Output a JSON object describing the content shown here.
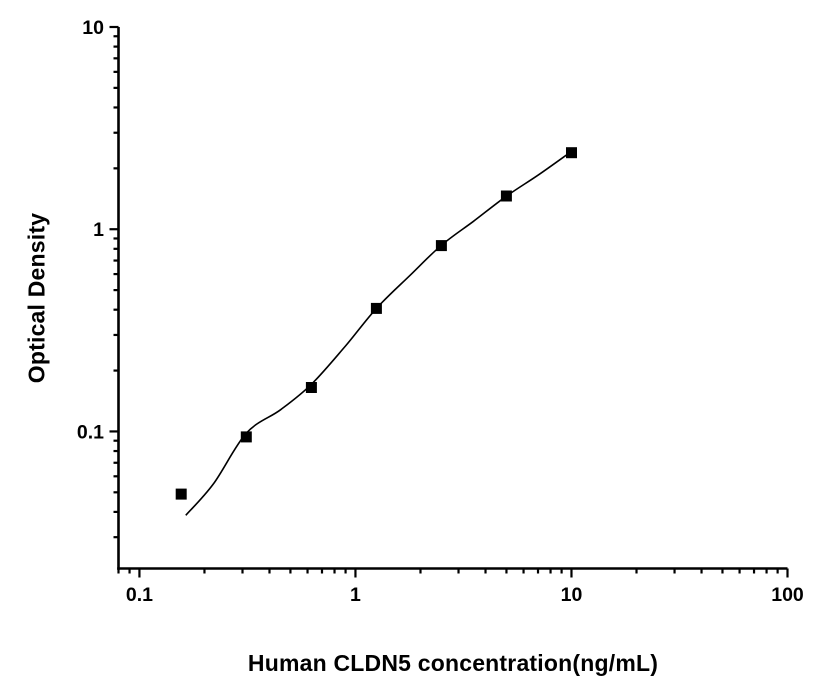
{
  "chart_data": {
    "type": "scatter",
    "title": "",
    "xlabel": "Human CLDN5 concentration(ng/mL)",
    "ylabel": "Optical Density",
    "x_scale": "log",
    "y_scale": "log",
    "xlim": [
      0.08,
      100
    ],
    "ylim": [
      0.021,
      10
    ],
    "grid": false,
    "legend": null,
    "x_major_ticks": [
      {
        "value": 0.1,
        "label": "0.1"
      },
      {
        "value": 1,
        "label": "1"
      },
      {
        "value": 10,
        "label": "10"
      },
      {
        "value": 100,
        "label": "100"
      }
    ],
    "y_major_ticks": [
      {
        "value": 0.1,
        "label": "0.1"
      },
      {
        "value": 1,
        "label": "1"
      },
      {
        "value": 10,
        "label": "10"
      }
    ],
    "series": [
      {
        "name": "standard-curve-points",
        "type": "scatter",
        "marker": {
          "shape": "square",
          "size": 11,
          "color": "#000000"
        },
        "points": [
          {
            "x": 0.156,
            "y": 0.049
          },
          {
            "x": 0.3125,
            "y": 0.094
          },
          {
            "x": 0.625,
            "y": 0.165
          },
          {
            "x": 1.25,
            "y": 0.406
          },
          {
            "x": 2.5,
            "y": 0.83
          },
          {
            "x": 5,
            "y": 1.46
          },
          {
            "x": 10,
            "y": 2.39
          }
        ]
      },
      {
        "name": "fit-curve",
        "type": "line",
        "color": "#000000",
        "width": 1.6,
        "points": [
          {
            "x": 0.164,
            "y": 0.0385
          },
          {
            "x": 0.22,
            "y": 0.055
          },
          {
            "x": 0.3125,
            "y": 0.098
          },
          {
            "x": 0.45,
            "y": 0.128
          },
          {
            "x": 0.625,
            "y": 0.171
          },
          {
            "x": 0.9,
            "y": 0.265
          },
          {
            "x": 1.25,
            "y": 0.406
          },
          {
            "x": 1.8,
            "y": 0.595
          },
          {
            "x": 2.5,
            "y": 0.833
          },
          {
            "x": 3.5,
            "y": 1.09
          },
          {
            "x": 5,
            "y": 1.457
          },
          {
            "x": 7,
            "y": 1.85
          },
          {
            "x": 9.6,
            "y": 2.35
          }
        ]
      }
    ],
    "colors": {
      "ink": "#000000",
      "background": "#ffffff"
    }
  }
}
